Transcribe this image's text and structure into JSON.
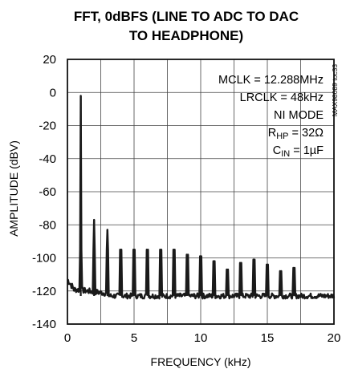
{
  "chart_data": {
    "type": "line",
    "title_lines": [
      "FFT, 0dBFS (LINE TO ADC TO DAC",
      "TO HEADPHONE)"
    ],
    "xlabel": "FREQUENCY (kHz)",
    "ylabel": "AMPLITUDE (dBV)",
    "xlim": [
      0,
      20
    ],
    "ylim": [
      -140,
      20
    ],
    "x_ticks": [
      "0",
      "5",
      "10",
      "15",
      "20"
    ],
    "y_ticks": [
      "20",
      "0",
      "-20",
      "-40",
      "-60",
      "-80",
      "-100",
      "-120",
      "-140"
    ],
    "grid": true,
    "noise_floor_dbv": -123,
    "peaks": [
      {
        "x": 1,
        "y": -2
      },
      {
        "x": 2,
        "y": -77
      },
      {
        "x": 3,
        "y": -83
      },
      {
        "x": 4,
        "y": -104
      },
      {
        "x": 5,
        "y": -102
      },
      {
        "x": 6,
        "y": -105
      },
      {
        "x": 7,
        "y": -103
      },
      {
        "x": 8,
        "y": -107
      },
      {
        "x": 9,
        "y": -110
      },
      {
        "x": 10,
        "y": -111
      },
      {
        "x": 11,
        "y": -114
      },
      {
        "x": 12,
        "y": -119
      },
      {
        "x": 13,
        "y": -115
      },
      {
        "x": 14,
        "y": -113
      },
      {
        "x": 15,
        "y": -116
      },
      {
        "x": 16,
        "y": -120
      },
      {
        "x": 17,
        "y": -118
      }
    ],
    "annotations": {
      "mclk": "MCLK = 12.288MHz",
      "lrclk": "LRCLK = 48kHz",
      "mode": "NI MODE",
      "rhp_main": "R",
      "rhp_sub": "HP",
      "rhp_value": " = 32Ω",
      "cin_main": "C",
      "cin_sub": "IN",
      "cin_value": " = 1µF"
    },
    "figure_code": "MAX98089 toc33"
  }
}
